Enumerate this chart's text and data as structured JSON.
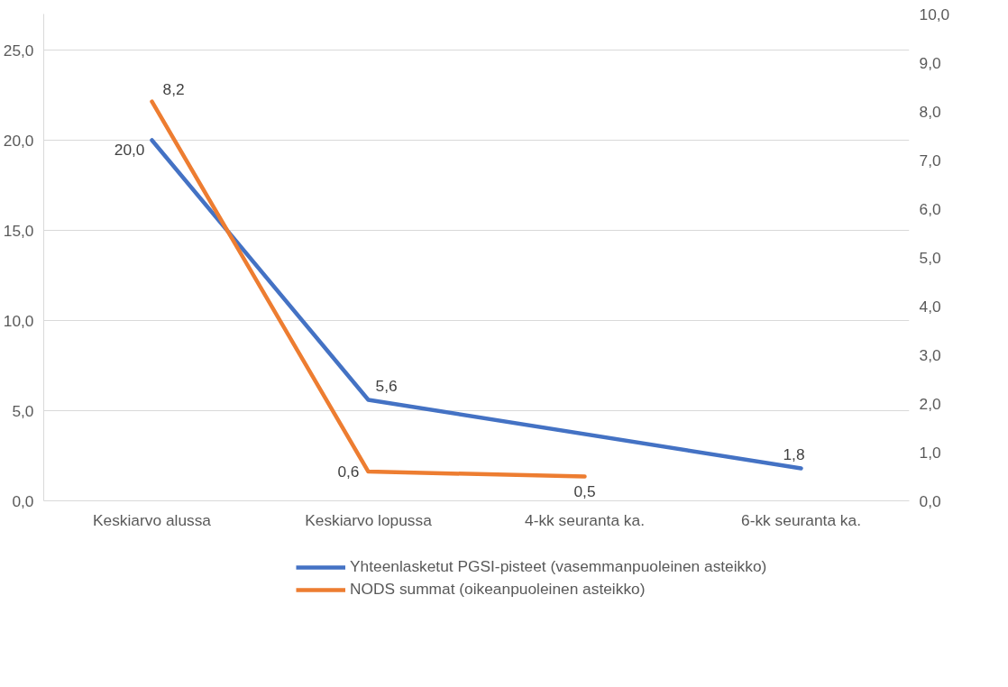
{
  "chart_data": {
    "type": "line",
    "categories": [
      "Keskiarvo alussa",
      "Keskiarvo lopussa",
      "4-kk seuranta ka.",
      "6-kk seuranta ka."
    ],
    "series": [
      {
        "name": "Yhteenlasketut PGSI-pisteet (vasemmanpuoleinen asteikko)",
        "color": "#4472c4",
        "values": [
          20.0,
          5.6,
          null,
          1.8
        ],
        "value_labels": [
          "20,0",
          "5,6",
          null,
          "1,8"
        ]
      },
      {
        "name": "NODS summat (oikeanpuoleinen asteikko)",
        "color": "#ed7d31",
        "axis": "y2",
        "values": [
          8.2,
          0.6,
          0.5,
          null
        ],
        "value_labels": [
          "8,2",
          "0,6",
          "0,5",
          null
        ]
      }
    ],
    "ylim": [
      0,
      27
    ],
    "yticks": [
      {
        "value": 0,
        "label": "0,0"
      },
      {
        "value": 5,
        "label": "5,0"
      },
      {
        "value": 10,
        "label": "10,0"
      },
      {
        "value": 15,
        "label": "15,0"
      },
      {
        "value": 20,
        "label": "20,0"
      },
      {
        "value": 25,
        "label": "25,0"
      }
    ],
    "y2lim": [
      0,
      10
    ],
    "y2ticks": [
      {
        "value": 0,
        "label": "0,0"
      },
      {
        "value": 1,
        "label": "1,0"
      },
      {
        "value": 2,
        "label": "2,0"
      },
      {
        "value": 3,
        "label": "3,0"
      },
      {
        "value": 4,
        "label": "4,0"
      },
      {
        "value": 5,
        "label": "5,0"
      },
      {
        "value": 6,
        "label": "6,0"
      },
      {
        "value": 7,
        "label": "7,0"
      },
      {
        "value": 8,
        "label": "8,0"
      },
      {
        "value": 9,
        "label": "9,0"
      },
      {
        "value": 10,
        "label": "10,0"
      }
    ],
    "grid": "y",
    "legend": "bottom",
    "marker": "none",
    "line_style": "solid"
  }
}
